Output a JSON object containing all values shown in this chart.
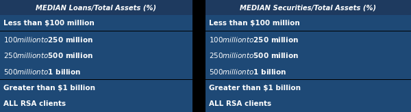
{
  "left_title": "MEDIAN Loans/Total Assets (%)",
  "right_title": "MEDIAN Securities/Total Assets (%)",
  "rows": [
    "Less than $100 million",
    "$100 million to $250 million",
    "$250 million to $500 million",
    "$500 million to $1 billion",
    "Greater than $1 billion",
    "ALL RSA clients"
  ],
  "header_bg": "#1e3a5f",
  "row_bg": "#1e4976",
  "text_color": "#ffffff",
  "bg_color": "#000000",
  "gap_color": "#000000",
  "fig_width": 6.0,
  "fig_height": 1.64,
  "dpi": 100
}
